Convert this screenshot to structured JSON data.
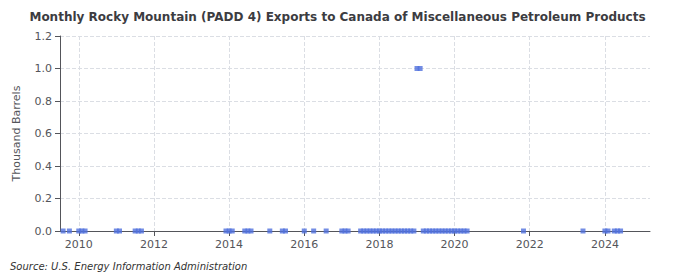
{
  "chart_data": {
    "type": "scatter",
    "title": "Monthly Rocky Mountain (PADD 4) Exports to Canada of Miscellaneous Petroleum Products",
    "ylabel": "Thousand Barrels",
    "annotations": [
      "Source: U.S. Energy Information Administration"
    ],
    "marker": "square",
    "grid": true,
    "xlim": [
      2009.5,
      2025.2
    ],
    "xticks": [
      2010,
      2012,
      2014,
      2016,
      2018,
      2020,
      2022,
      2024
    ],
    "ylim": [
      0.0,
      1.2
    ],
    "yticks": [
      {
        "value": 0.0,
        "label": "0.0"
      },
      0.2,
      0.4,
      0.6,
      0.8,
      {
        "value": 1.0,
        "label": "1.0"
      },
      1.2
    ],
    "x": [
      2009.583,
      2009.75,
      2010.0,
      2010.083,
      2010.167,
      2011.0,
      2011.083,
      2011.5,
      2011.583,
      2011.667,
      2013.917,
      2014.0,
      2014.083,
      2014.417,
      2014.5,
      2014.583,
      2015.083,
      2015.417,
      2015.5,
      2016.0,
      2016.25,
      2016.583,
      2017.0,
      2017.083,
      2017.167,
      2017.5,
      2017.583,
      2017.667,
      2017.75,
      2017.833,
      2017.917,
      2018.0,
      2018.083,
      2018.167,
      2018.25,
      2018.333,
      2018.417,
      2018.5,
      2018.583,
      2018.667,
      2018.75,
      2018.833,
      2018.917,
      2019.0,
      2019.083,
      2019.167,
      2019.25,
      2019.333,
      2019.417,
      2019.5,
      2019.583,
      2019.667,
      2019.75,
      2019.833,
      2019.917,
      2020.0,
      2020.083,
      2020.167,
      2020.25,
      2020.333,
      2021.833,
      2023.417,
      2024.0,
      2024.083,
      2024.25,
      2024.333,
      2024.417
    ],
    "values": [
      0.0,
      0.0,
      0.0,
      0.0,
      0.0,
      0.0,
      0.0,
      0.0,
      0.0,
      0.0,
      0.0,
      0.0,
      0.0,
      0.0,
      0.0,
      0.0,
      0.0,
      0.0,
      0.0,
      0.0,
      0.0,
      0.0,
      0.0,
      0.0,
      0.0,
      0.0,
      0.0,
      0.0,
      0.0,
      0.0,
      0.0,
      0.0,
      0.0,
      0.0,
      0.0,
      0.0,
      0.0,
      0.0,
      0.0,
      0.0,
      0.0,
      0.0,
      0.0,
      1.0,
      1.0,
      0.0,
      0.0,
      0.0,
      0.0,
      0.0,
      0.0,
      0.0,
      0.0,
      0.0,
      0.0,
      0.0,
      0.0,
      0.0,
      0.0,
      0.0,
      0.0,
      0.0,
      0.0,
      0.0,
      0.0,
      0.0,
      0.0
    ]
  }
}
